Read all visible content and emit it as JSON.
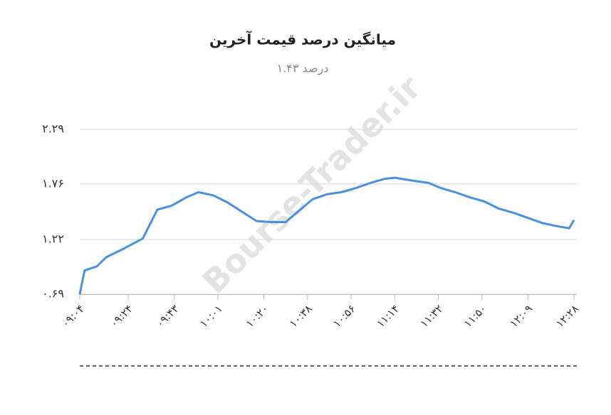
{
  "chart_data": {
    "type": "line",
    "title": "میانگین درصد قیمت آخرین",
    "subtitle": "درصد ۱.۴۳",
    "watermark": "Bourse-Trader.ir",
    "x": [
      "۰۹:۰۴",
      "۰۹:۰۶",
      "۰۹:۱۱",
      "۰۹:۱۵",
      "۰۹:۲۲",
      "۰۹:۳۰",
      "۰۹:۳۶",
      "۰۹:۴۲",
      "۰۹:۴۸",
      "۰۹:۵۳",
      "۰۹:۵۹",
      "۱۰:۰۵",
      "۱۰:۱۱",
      "۱۰:۱۷",
      "۱۰:۲۳",
      "۱۰:۲۹",
      "۱۰:۳۵",
      "۱۰:۴۰",
      "۱۰:۴۶",
      "۱۰:۵۲",
      "۱۰:۵۸",
      "۱۱:۰۴",
      "۱۱:۱۰",
      "۱۱:۱۴",
      "۱۱:۲۲",
      "۱۱:۲۸",
      "۱۱:۳۳",
      "۱۱:۳۹",
      "۱۱:۴۵",
      "۱۱:۵۱",
      "۱۱:۵۷",
      "۱۲:۰۳",
      "۱۲:۰۹",
      "۱۲:۱۵",
      "۱۲:۲۱",
      "۱۲:۲۶",
      "۱۲:۲۸"
    ],
    "series": [
      {
        "color": "#4a90e2",
        "values": [
          0.69,
          0.92,
          0.96,
          1.05,
          1.13,
          1.23,
          1.51,
          1.55,
          1.63,
          1.68,
          1.65,
          1.58,
          1.49,
          1.4,
          1.39,
          1.39,
          1.51,
          1.61,
          1.66,
          1.68,
          1.72,
          1.77,
          1.81,
          1.82,
          1.79,
          1.77,
          1.72,
          1.68,
          1.63,
          1.59,
          1.52,
          1.48,
          1.43,
          1.38,
          1.35,
          1.33,
          1.41
        ]
      }
    ],
    "xlim": [
      "۰۹:۰۴",
      "۱۲:۲۸"
    ],
    "xticks": [
      "۰۹:۰۴",
      "۰۹:۲۴",
      "۰۹:۴۳",
      "۱۰:۰۱",
      "۱۰:۲۰",
      "۱۰:۳۸",
      "۱۰:۵۶",
      "۱۱:۱۴",
      "۱۱:۳۲",
      "۱۱:۵۰",
      "۱۲:۰۹",
      "۱۲:۲۸"
    ],
    "ylim": [
      0.69,
      2.29
    ],
    "yticks": [
      {
        "value": 0.69,
        "label": "۰.۶۹"
      },
      {
        "value": 1.22,
        "label": "۱.۲۲"
      },
      {
        "value": 1.76,
        "label": "۱.۷۶"
      },
      {
        "value": 2.29,
        "label": "۲.۲۹"
      }
    ],
    "grid": true
  }
}
